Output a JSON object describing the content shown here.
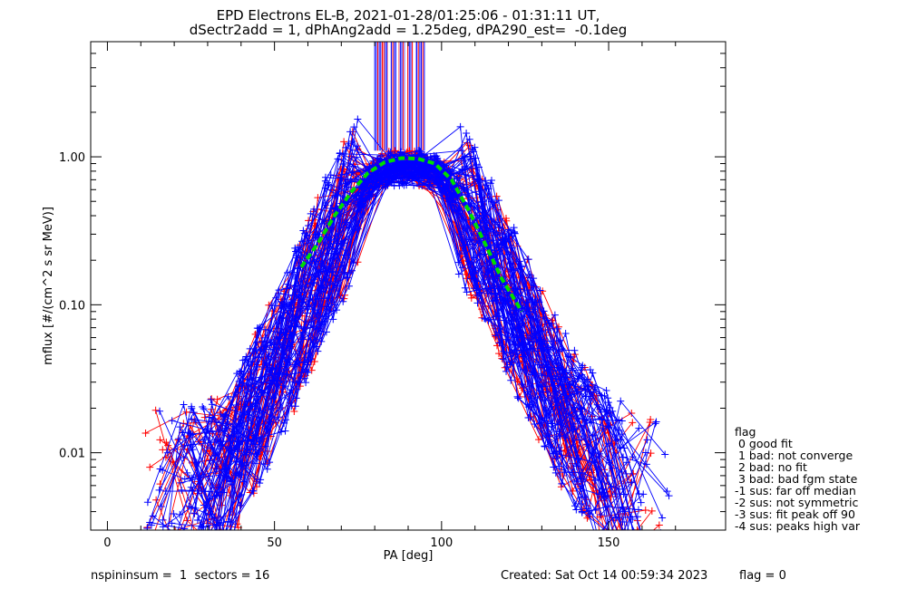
{
  "title": {
    "line1": "EPD Electrons EL-B, 2021-01-28/01:25:06 - 01:31:11 UT,",
    "line2": "dSectr2add = 1, dPhAng2add = 1.25deg, dPA290_est=  -0.1deg"
  },
  "footer": {
    "left": "nspininsum =  1  sectors = 16",
    "created": "Created: Sat Oct 14 00:59:34 2023",
    "flag": "flag = 0"
  },
  "legend": {
    "title": "flag",
    "items": [
      " 0 good fit",
      " 1 bad: not converge",
      " 2 bad: no fit",
      " 3 bad: bad fgm state",
      "-1 sus: far off median",
      "-2 sus: not symmetric",
      "-3 sus: fit peak off 90",
      "-4 sus: peaks high var"
    ]
  },
  "colors": {
    "blue": "#0000ff",
    "red": "#ff0000",
    "green": "#00dd00",
    "axis": "#000000"
  },
  "chart_data": {
    "type": "line",
    "title": "EPD Electrons EL-B, 2021-01-28/01:25:06 - 01:31:11 UT, dSectr2add = 1, dPhAng2add = 1.25deg, dPA290_est=  -0.1deg",
    "xlabel": "PA [deg]",
    "ylabel": "mflux [#/(cm^2 s sr MeV)]",
    "xlim": [
      -5,
      185
    ],
    "ylim": [
      0.003,
      6.0
    ],
    "ylog": true,
    "xticks": [
      0,
      50,
      100,
      150
    ],
    "xtick_labels": [
      "0",
      "50",
      "100",
      "150"
    ],
    "yticks": [
      0.01,
      0.1,
      1.0
    ],
    "ytick_labels": [
      "0.01",
      "0.10",
      "1.00"
    ],
    "fit_curve": {
      "name": "",
      "color": "green",
      "x": [
        58,
        63,
        68,
        73,
        78,
        83,
        88,
        93,
        98,
        103,
        108,
        113,
        118,
        124
      ],
      "y": [
        0.18,
        0.26,
        0.4,
        0.58,
        0.78,
        0.92,
        0.98,
        0.97,
        0.9,
        0.7,
        0.44,
        0.26,
        0.15,
        0.09
      ]
    },
    "blue_series_count": 70,
    "red_series_count": 40,
    "series_profile": {
      "x": [
        15,
        25,
        35,
        45,
        55,
        65,
        75,
        82,
        90,
        98,
        105,
        115,
        125,
        135,
        145,
        155,
        163
      ],
      "y": [
        0.006,
        0.006,
        0.007,
        0.02,
        0.06,
        0.2,
        0.55,
        0.82,
        0.85,
        0.82,
        0.55,
        0.2,
        0.065,
        0.022,
        0.01,
        0.006,
        0.005
      ]
    },
    "spike_region": {
      "x": [
        80,
        95
      ],
      "y_from": 1.1,
      "y_to": 6.0
    }
  }
}
